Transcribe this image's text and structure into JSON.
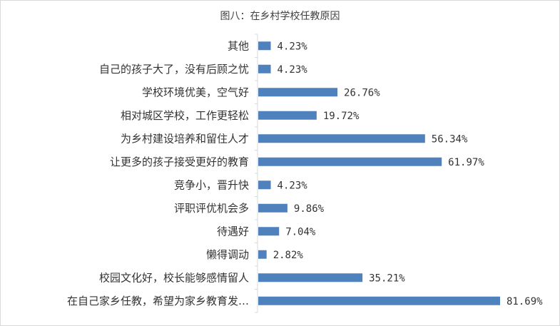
{
  "chart_data": {
    "type": "bar",
    "orientation": "horizontal",
    "title": "图八：在乡村学校任教原因",
    "categories": [
      "其他",
      "自己的孩子大了，没有后顾之忧",
      "学校环境优美，空气好",
      "相对城区学校，工作更轻松",
      "为乡村建设培养和留住人才",
      "让更多的孩子接受更好的教育",
      "竞争小，晋升快",
      "评职评优机会多",
      "待遇好",
      "懒得调动",
      "校园文化好，校长能够感情留人",
      "在自己家乡任教，希望为家乡教育发…"
    ],
    "values": [
      4.23,
      4.23,
      26.76,
      19.72,
      56.34,
      61.97,
      4.23,
      9.86,
      7.04,
      2.82,
      35.21,
      81.69
    ],
    "value_labels": [
      "4.23%",
      "4.23%",
      "26.76%",
      "19.72%",
      "56.34%",
      "61.97%",
      "4.23%",
      "9.86%",
      "7.04%",
      "2.82%",
      "35.21%",
      "81.69%"
    ],
    "unit": "%",
    "bar_color": "#4f81bd",
    "grid": false,
    "legend": "none"
  }
}
